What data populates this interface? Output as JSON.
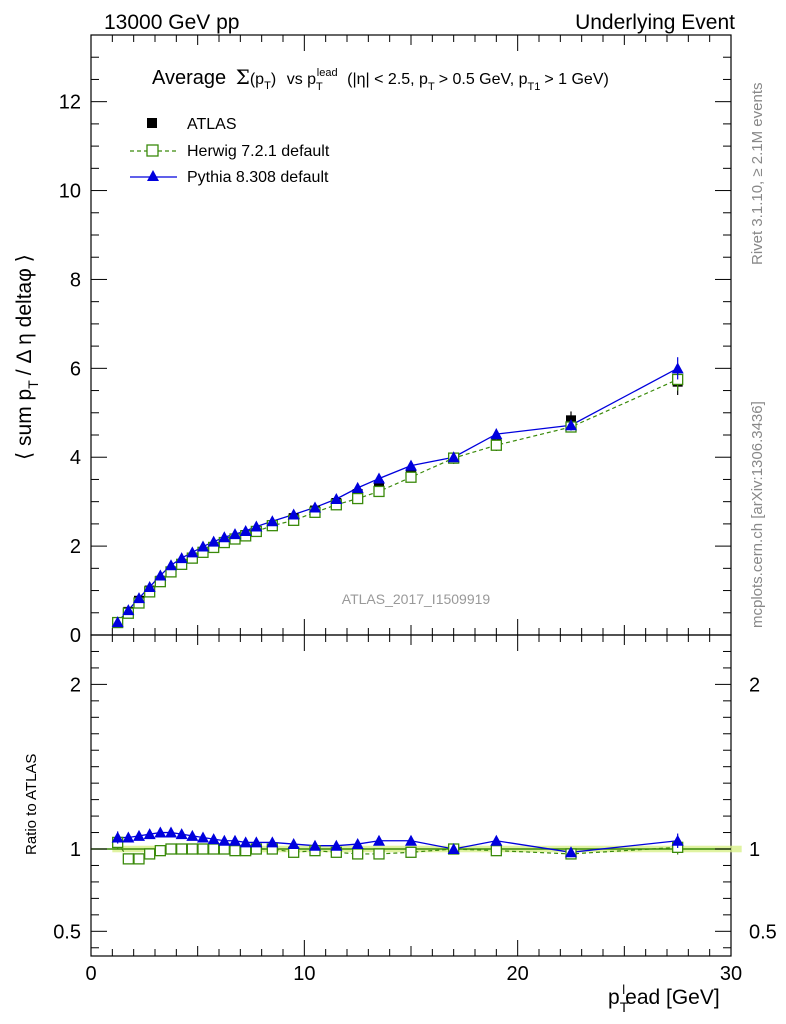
{
  "header": {
    "left": "13000 GeV pp",
    "right": "Underlying Event"
  },
  "title": {
    "main": "Average",
    "sigma_arg": "(p",
    "sigma_sub": "T",
    "sigma_close": ")",
    "vs": "vs p",
    "vs_sub": "T",
    "vs_sup": "lead",
    "cuts_a": "(|η| < 2.5, p",
    "cuts_sub1": "T",
    "cuts_b": "> 0.5 GeV, p",
    "cuts_sub2": "T1",
    "cuts_c": "> 1 GeV)"
  },
  "side_labels": {
    "rivet": "Rivet 3.1.10, ≥ 2.1M events",
    "mcplots": "mcplots.cern.ch [arXiv:1306.3436]"
  },
  "watermark": "ATLAS_2017_I1509919",
  "axes": {
    "ylabel_main": "⟨ sum p",
    "ylabel_main_sub": "T",
    "ylabel_main_rest": "/ Δ η deltaφ ⟩",
    "ylabel_ratio": "Ratio to ATLAS",
    "xlabel": "p",
    "xlabel_sub": "T",
    "xlabel_sup": "l",
    "xlabel_rest": "ead [GeV]"
  },
  "legend": [
    {
      "label": "ATLAS",
      "color": "#000000",
      "marker": "filled-square"
    },
    {
      "label": "Herwig 7.2.1 default",
      "color": "#3a8a0a",
      "marker": "open-square"
    },
    {
      "label": "Pythia 8.308 default",
      "color": "#0000dd",
      "marker": "filled-triangle"
    }
  ],
  "chart_data": {
    "type": "line",
    "x_range": [
      0,
      30
    ],
    "main_y_range": [
      0,
      13.5
    ],
    "ratio_y_range": [
      0.35,
      2.3
    ],
    "main_y_ticks": [
      0,
      2,
      4,
      6,
      8,
      10,
      12
    ],
    "ratio_y_ticks": [
      0.5,
      1,
      2
    ],
    "x_ticks": [
      0,
      10,
      20,
      30
    ],
    "x": [
      1.25,
      1.75,
      2.25,
      2.75,
      3.25,
      3.75,
      4.25,
      4.75,
      5.25,
      5.75,
      6.25,
      6.75,
      7.25,
      7.75,
      8.5,
      9.5,
      10.5,
      11.5,
      12.5,
      13.5,
      15,
      17,
      19,
      22.5,
      27.5
    ],
    "series": [
      {
        "name": "ATLAS",
        "values": [
          0.27,
          0.52,
          0.77,
          1.0,
          1.22,
          1.42,
          1.58,
          1.72,
          1.86,
          1.97,
          2.08,
          2.17,
          2.25,
          2.34,
          2.47,
          2.63,
          2.8,
          2.97,
          3.17,
          3.35,
          3.62,
          3.97,
          4.3,
          4.83,
          5.7
        ],
        "errors": [
          0.02,
          0.02,
          0.02,
          0.02,
          0.02,
          0.02,
          0.02,
          0.02,
          0.03,
          0.03,
          0.03,
          0.03,
          0.03,
          0.03,
          0.04,
          0.05,
          0.05,
          0.06,
          0.07,
          0.08,
          0.1,
          0.12,
          0.16,
          0.2,
          0.3
        ]
      },
      {
        "name": "Herwig 7.2.1 default",
        "values": [
          0.28,
          0.49,
          0.72,
          0.97,
          1.2,
          1.42,
          1.59,
          1.73,
          1.86,
          1.97,
          2.08,
          2.16,
          2.23,
          2.33,
          2.46,
          2.58,
          2.76,
          2.93,
          3.07,
          3.23,
          3.55,
          3.98,
          4.27,
          4.68,
          5.75
        ],
        "ratio": [
          1.04,
          0.94,
          0.94,
          0.97,
          0.99,
          1.0,
          1.0,
          1.0,
          1.0,
          1.0,
          1.0,
          0.99,
          0.99,
          1.0,
          1.0,
          0.98,
          0.99,
          0.98,
          0.97,
          0.97,
          0.98,
          1.0,
          0.99,
          0.97,
          1.01
        ],
        "errors": [
          0.01,
          0.01,
          0.01,
          0.01,
          0.01,
          0.01,
          0.01,
          0.01,
          0.01,
          0.01,
          0.01,
          0.02,
          0.02,
          0.02,
          0.02,
          0.03,
          0.03,
          0.04,
          0.04,
          0.05,
          0.06,
          0.07,
          0.1,
          0.12,
          0.25
        ]
      },
      {
        "name": "Pythia 8.308 default",
        "values": [
          0.29,
          0.56,
          0.83,
          1.08,
          1.34,
          1.57,
          1.73,
          1.86,
          1.99,
          2.1,
          2.2,
          2.27,
          2.34,
          2.44,
          2.56,
          2.71,
          2.87,
          3.06,
          3.31,
          3.52,
          3.81,
          4.0,
          4.52,
          4.72,
          6.0
        ],
        "ratio": [
          1.07,
          1.07,
          1.08,
          1.09,
          1.1,
          1.1,
          1.09,
          1.08,
          1.07,
          1.06,
          1.05,
          1.05,
          1.04,
          1.04,
          1.04,
          1.03,
          1.02,
          1.02,
          1.03,
          1.05,
          1.05,
          1.0,
          1.05,
          0.98,
          1.05
        ],
        "errors": [
          0.01,
          0.01,
          0.01,
          0.01,
          0.01,
          0.01,
          0.01,
          0.01,
          0.01,
          0.01,
          0.01,
          0.02,
          0.02,
          0.02,
          0.02,
          0.03,
          0.03,
          0.04,
          0.04,
          0.05,
          0.06,
          0.07,
          0.12,
          0.12,
          0.25
        ]
      }
    ]
  }
}
